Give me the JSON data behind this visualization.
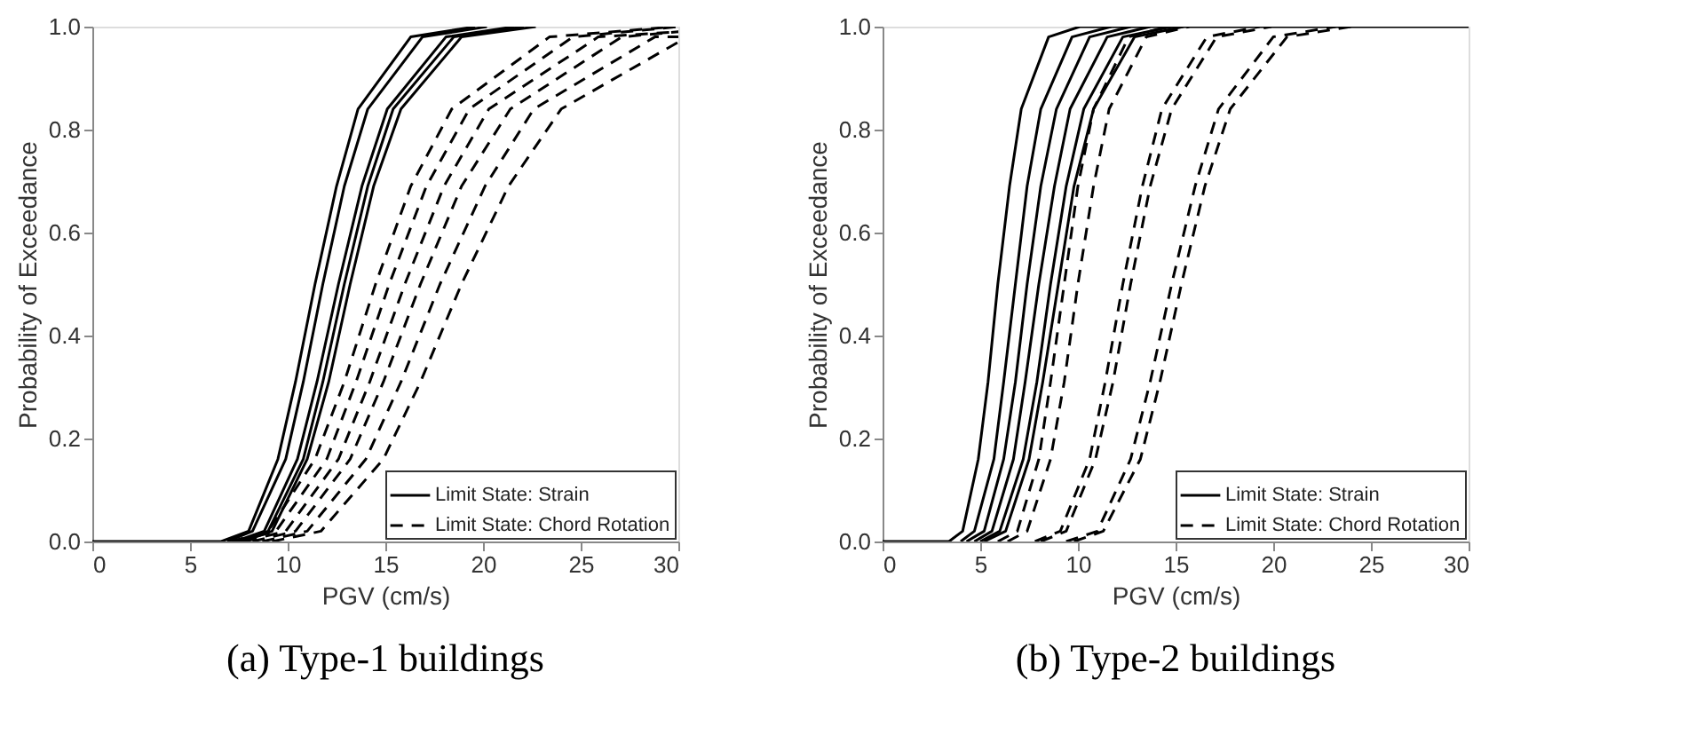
{
  "chart_data": [
    {
      "type": "line",
      "title": "(a) Type-1 buildings",
      "xlabel": "PGV (cm/s)",
      "ylabel": "Probability of Exceedance",
      "xlim": [
        0,
        30
      ],
      "xticks": [
        0,
        5,
        10,
        15,
        20,
        25,
        30
      ],
      "ylim": [
        0,
        1
      ],
      "yticks": [
        {
          "value": 0,
          "label": "0.0"
        },
        {
          "value": 0.2,
          "label": "0.2"
        },
        {
          "value": 0.4,
          "label": "0.4"
        },
        {
          "value": 0.6,
          "label": "0.6"
        },
        {
          "value": 0.8,
          "label": "0.8"
        },
        {
          "value": 1,
          "label": "1.0"
        }
      ],
      "grid": false,
      "legend": "bottom right",
      "marker": "none",
      "series": [
        {
          "name": "Limit State: Strain",
          "color": "#000000",
          "line_style": "solid",
          "x": [
            0,
            6.6,
            8.0,
            9.5,
            10.4,
            11.4,
            12.5,
            13.6,
            16.3,
            19.6
          ],
          "values": [
            0,
            0,
            0.02,
            0.16,
            0.31,
            0.5,
            0.69,
            0.84,
            0.98,
            1
          ]
        },
        {
          "color": "#000000",
          "line_style": "solid",
          "x": [
            6.9,
            8.2,
            9.9,
            10.8,
            11.8,
            12.9,
            14.1,
            16.9,
            20.2
          ],
          "values": [
            0,
            0.02,
            0.16,
            0.31,
            0.5,
            0.69,
            0.84,
            0.98,
            1
          ]
        },
        {
          "color": "#000000",
          "line_style": "solid",
          "x": [
            7.3,
            8.8,
            10.5,
            11.5,
            12.6,
            13.8,
            15.1,
            18.1,
            21.6
          ],
          "values": [
            0,
            0.02,
            0.16,
            0.31,
            0.5,
            0.69,
            0.84,
            0.98,
            1
          ]
        },
        {
          "color": "#000000",
          "line_style": "solid",
          "x": [
            7.5,
            9.0,
            10.8,
            11.8,
            12.9,
            14.1,
            15.4,
            18.5,
            22.1
          ],
          "values": [
            0,
            0.02,
            0.16,
            0.31,
            0.5,
            0.69,
            0.84,
            0.98,
            1
          ]
        },
        {
          "color": "#000000",
          "line_style": "solid",
          "x": [
            7.7,
            9.2,
            11.0,
            12.1,
            13.2,
            14.4,
            15.8,
            18.9,
            22.7
          ],
          "values": [
            0,
            0.02,
            0.16,
            0.31,
            0.5,
            0.69,
            0.84,
            0.98,
            1
          ]
        },
        {
          "name": "Limit State: Chord Rotation",
          "color": "#000000",
          "line_style": "dashed",
          "x": [
            7.1,
            9.0,
            11.4,
            12.9,
            14.5,
            16.3,
            18.4,
            23.4,
            29.8
          ],
          "values": [
            0,
            0.02,
            0.16,
            0.31,
            0.5,
            0.69,
            0.84,
            0.98,
            1
          ]
        },
        {
          "color": "#000000",
          "line_style": "dashed",
          "x": [
            7.4,
            9.4,
            12.0,
            13.5,
            15.2,
            17.1,
            19.3,
            24.6,
            30
          ],
          "values": [
            0,
            0.02,
            0.16,
            0.31,
            0.5,
            0.69,
            0.84,
            0.98,
            1
          ]
        },
        {
          "color": "#000000",
          "line_style": "dashed",
          "x": [
            7.8,
            9.9,
            12.6,
            14.2,
            16.0,
            18.0,
            20.3,
            25.9,
            30
          ],
          "values": [
            0,
            0.02,
            0.16,
            0.31,
            0.5,
            0.69,
            0.84,
            0.98,
            0.99
          ]
        },
        {
          "color": "#000000",
          "line_style": "dashed",
          "x": [
            8.2,
            10.4,
            13.2,
            14.9,
            16.8,
            18.9,
            21.4,
            27.1,
            30
          ],
          "values": [
            0,
            0.02,
            0.16,
            0.31,
            0.5,
            0.69,
            0.84,
            0.98,
            0.99
          ]
        },
        {
          "color": "#000000",
          "line_style": "dashed",
          "x": [
            8.7,
            11.0,
            14.0,
            15.8,
            17.8,
            20.1,
            22.6,
            28.8,
            30
          ],
          "values": [
            0,
            0.02,
            0.16,
            0.31,
            0.5,
            0.69,
            0.84,
            0.98,
            0.98
          ]
        },
        {
          "color": "#000000",
          "line_style": "dashed",
          "x": [
            9.2,
            11.7,
            14.9,
            16.8,
            18.9,
            21.3,
            24.0,
            30
          ],
          "values": [
            0,
            0.02,
            0.16,
            0.31,
            0.5,
            0.69,
            0.84,
            0.97
          ]
        }
      ]
    },
    {
      "type": "line",
      "title": "(b) Type-2 buildings",
      "xlabel": "PGV (cm/s)",
      "ylabel": "Probability of Exceedance",
      "xlim": [
        0,
        30
      ],
      "xticks": [
        0,
        5,
        10,
        15,
        20,
        25,
        30
      ],
      "ylim": [
        0,
        1
      ],
      "yticks": [
        {
          "value": 0,
          "label": "0.0"
        },
        {
          "value": 0.2,
          "label": "0.2"
        },
        {
          "value": 0.4,
          "label": "0.4"
        },
        {
          "value": 0.6,
          "label": "0.6"
        },
        {
          "value": 0.8,
          "label": "0.8"
        },
        {
          "value": 1,
          "label": "1.0"
        }
      ],
      "grid": false,
      "legend": "bottom right",
      "marker": "none",
      "series": [
        {
          "name": "Limit State: Strain",
          "color": "#000000",
          "line_style": "solid",
          "x": [
            0,
            3.4,
            4.1,
            4.9,
            5.4,
            5.9,
            6.5,
            7.1,
            8.5,
            10.1,
            30
          ],
          "values": [
            0,
            0,
            0.02,
            0.16,
            0.31,
            0.5,
            0.69,
            0.84,
            0.98,
            1,
            1
          ]
        },
        {
          "color": "#000000",
          "line_style": "solid",
          "x": [
            4.0,
            4.7,
            5.7,
            6.2,
            6.8,
            7.4,
            8.1,
            9.7,
            11.7
          ],
          "values": [
            0,
            0.02,
            0.16,
            0.31,
            0.5,
            0.69,
            0.84,
            0.98,
            1
          ]
        },
        {
          "color": "#000000",
          "line_style": "solid",
          "x": [
            4.3,
            5.2,
            6.2,
            6.8,
            7.4,
            8.1,
            8.9,
            10.6,
            12.7
          ],
          "values": [
            0,
            0.02,
            0.16,
            0.31,
            0.5,
            0.69,
            0.84,
            0.98,
            1
          ]
        },
        {
          "color": "#000000",
          "line_style": "solid",
          "x": [
            4.7,
            5.6,
            6.7,
            7.3,
            8.0,
            8.8,
            9.6,
            11.5,
            13.7
          ],
          "values": [
            0,
            0.02,
            0.16,
            0.31,
            0.5,
            0.69,
            0.84,
            0.98,
            1
          ]
        },
        {
          "color": "#000000",
          "line_style": "solid",
          "x": [
            5.0,
            6.0,
            7.2,
            7.9,
            8.6,
            9.4,
            10.3,
            12.3,
            14.8
          ],
          "values": [
            0,
            0.02,
            0.16,
            0.31,
            0.5,
            0.69,
            0.84,
            0.98,
            1
          ]
        },
        {
          "color": "#000000",
          "line_style": "solid",
          "x": [
            5.2,
            6.3,
            7.5,
            8.2,
            9.0,
            9.8,
            10.8,
            12.9,
            15.4
          ],
          "values": [
            0,
            0.02,
            0.16,
            0.31,
            0.5,
            0.69,
            0.84,
            0.98,
            1
          ]
        },
        {
          "name": "Limit State: Chord Rotation",
          "color": "#000000",
          "line_style": "dashed",
          "x": [
            5.9,
            6.9,
            8.0,
            8.6,
            9.3,
            10.0,
            10.8,
            12.6,
            14.6
          ],
          "values": [
            0,
            0.02,
            0.16,
            0.31,
            0.5,
            0.69,
            0.84,
            0.98,
            1
          ]
        },
        {
          "color": "#000000",
          "line_style": "dashed",
          "x": [
            6.4,
            7.4,
            8.6,
            9.3,
            10.0,
            10.8,
            11.6,
            13.5,
            15.7
          ],
          "values": [
            0,
            0.02,
            0.16,
            0.31,
            0.5,
            0.69,
            0.84,
            0.98,
            1
          ]
        },
        {
          "color": "#000000",
          "line_style": "dashed",
          "x": [
            7.8,
            9.1,
            10.6,
            11.4,
            12.3,
            13.3,
            14.3,
            16.6,
            19.3
          ],
          "values": [
            0,
            0.02,
            0.16,
            0.31,
            0.5,
            0.69,
            0.84,
            0.98,
            1
          ]
        },
        {
          "color": "#000000",
          "line_style": "dashed",
          "x": [
            8.1,
            9.4,
            10.9,
            11.8,
            12.7,
            13.7,
            14.8,
            17.1,
            19.9
          ],
          "values": [
            0,
            0.02,
            0.16,
            0.31,
            0.5,
            0.69,
            0.84,
            0.98,
            1
          ]
        },
        {
          "color": "#000000",
          "line_style": "dashed",
          "x": [
            9.4,
            11.0,
            12.7,
            13.7,
            14.8,
            16.0,
            17.2,
            20.0,
            23.2
          ],
          "values": [
            0,
            0.02,
            0.16,
            0.31,
            0.5,
            0.69,
            0.84,
            0.98,
            1
          ]
        },
        {
          "color": "#000000",
          "line_style": "dashed",
          "x": [
            9.8,
            11.3,
            13.2,
            14.2,
            15.3,
            16.5,
            17.8,
            20.7,
            24.0
          ],
          "values": [
            0,
            0.02,
            0.16,
            0.31,
            0.5,
            0.69,
            0.84,
            0.98,
            1
          ]
        }
      ]
    }
  ]
}
